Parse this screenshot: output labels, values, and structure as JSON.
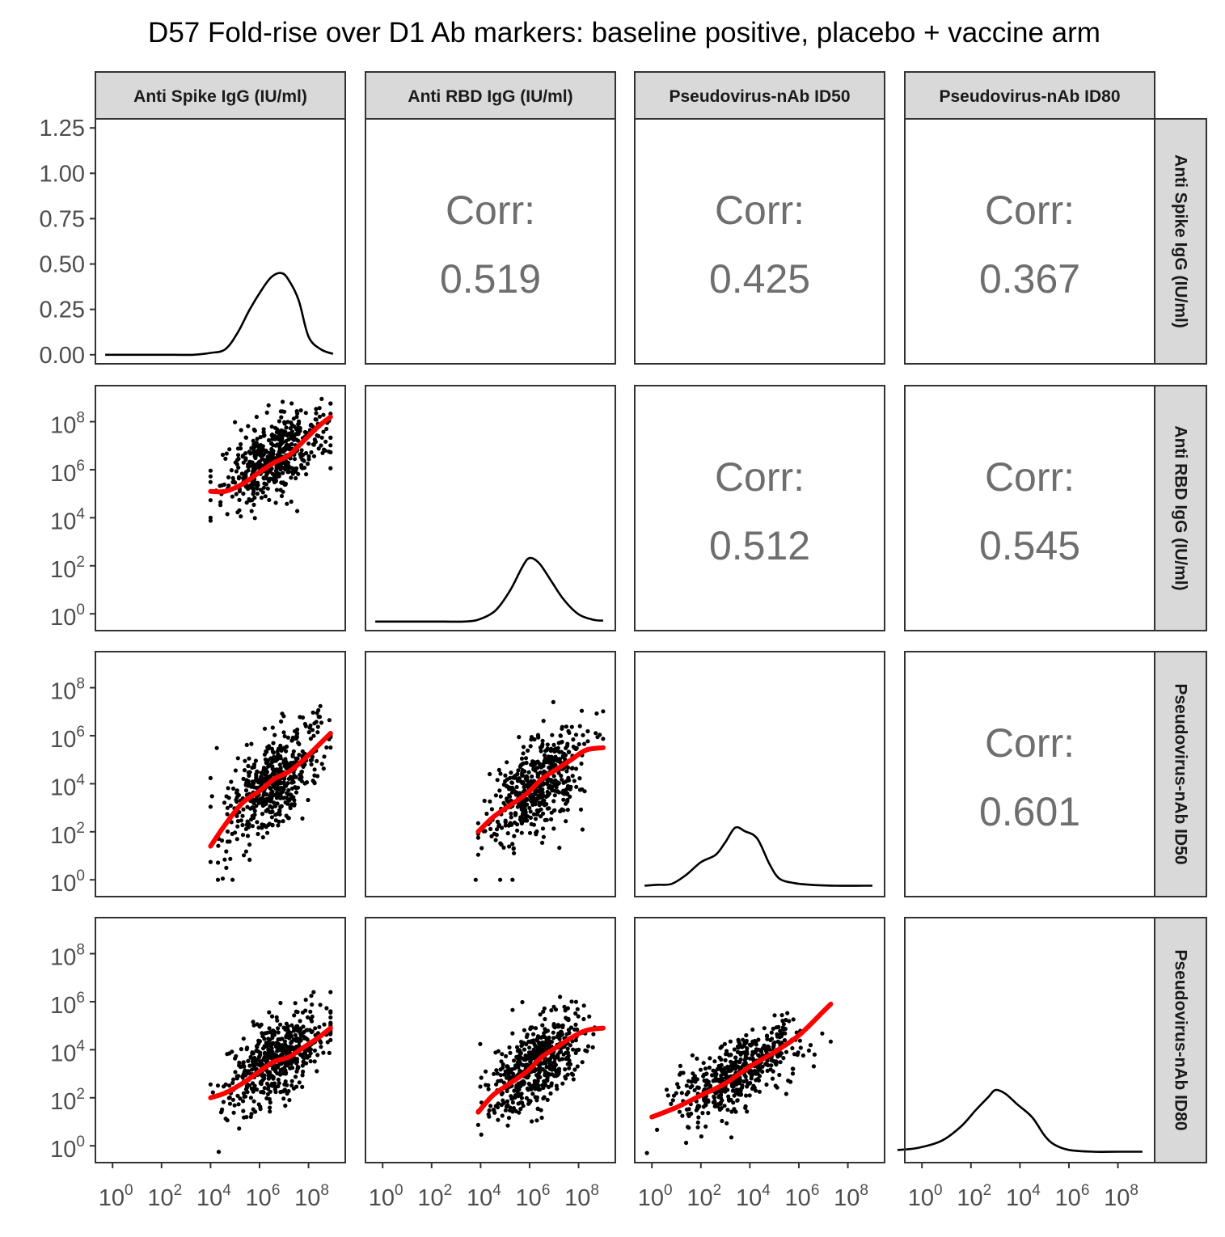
{
  "chart_data": {
    "type": "scatter",
    "title": "D57 Fold-rise over D1 Ab markers: baseline positive, placebo + vaccine arm",
    "variables": [
      "Anti Spike IgG (IU/ml)",
      "Anti RBD IgG (IU/ml)",
      "Pseudovirus-nAb ID50",
      "Pseudovirus-nAb ID80"
    ],
    "axis_scale": "log10",
    "log_range": [
      -0.7,
      9.5
    ],
    "tick_exponents": [
      0,
      2,
      4,
      6,
      8
    ],
    "density_axis": {
      "ticks": [
        "0.00",
        "0.25",
        "0.50",
        "0.75",
        "1.00",
        "1.25"
      ],
      "range": [
        -0.05,
        1.3
      ]
    },
    "correlations": [
      {
        "row": 0,
        "col": 1,
        "label": "Corr:",
        "value": "0.519"
      },
      {
        "row": 0,
        "col": 2,
        "label": "Corr:",
        "value": "0.425"
      },
      {
        "row": 0,
        "col": 3,
        "label": "Corr:",
        "value": "0.367"
      },
      {
        "row": 1,
        "col": 2,
        "label": "Corr:",
        "value": "0.512"
      },
      {
        "row": 1,
        "col": 3,
        "label": "Corr:",
        "value": "0.545"
      },
      {
        "row": 2,
        "col": 3,
        "label": "Corr:",
        "value": "0.601"
      }
    ],
    "densities": [
      {
        "var": "Anti Spike IgG (IU/ml)",
        "x": [
          -0.3,
          0.5,
          1.5,
          2.5,
          3.3,
          4.0,
          4.6,
          5.1,
          5.6,
          6.1,
          6.5,
          6.9,
          7.2,
          7.6,
          8.0,
          8.5,
          9.0
        ],
        "y": [
          0,
          0,
          0,
          0,
          0,
          0.01,
          0.03,
          0.12,
          0.25,
          0.36,
          0.43,
          0.45,
          0.41,
          0.3,
          0.1,
          0.03,
          0.005
        ]
      },
      {
        "var": "Anti RBD IgG (IU/ml)",
        "x": [
          -0.3,
          0.5,
          1.5,
          2.5,
          3.3,
          3.9,
          4.6,
          5.2,
          5.7,
          6.0,
          6.4,
          6.9,
          7.4,
          8.0,
          8.6,
          9.0
        ],
        "y": [
          0,
          0,
          0,
          0,
          0,
          0.01,
          0.06,
          0.17,
          0.3,
          0.35,
          0.32,
          0.22,
          0.12,
          0.04,
          0.01,
          0.005
        ]
      },
      {
        "var": "Pseudovirus-nAb ID50",
        "x": [
          -0.3,
          0.2,
          0.8,
          1.4,
          2.0,
          2.6,
          3.0,
          3.4,
          3.8,
          4.3,
          4.8,
          5.2,
          5.8,
          6.5,
          7.5,
          8.6,
          9.0
        ],
        "y": [
          0.01,
          0.015,
          0.02,
          0.07,
          0.14,
          0.18,
          0.25,
          0.33,
          0.31,
          0.27,
          0.13,
          0.05,
          0.025,
          0.015,
          0.01,
          0.01,
          0.01
        ]
      },
      {
        "var": "Pseudovirus-nAb ID80",
        "x": [
          -1.0,
          -0.2,
          0.8,
          1.6,
          2.2,
          2.7,
          3.0,
          3.4,
          3.9,
          4.5,
          5.0,
          5.4,
          6.0,
          7.0,
          8.0,
          9.0
        ],
        "y": [
          0.02,
          0.03,
          0.07,
          0.15,
          0.24,
          0.31,
          0.35,
          0.33,
          0.27,
          0.2,
          0.1,
          0.05,
          0.02,
          0.01,
          0.01,
          0.01
        ]
      }
    ],
    "scatter_panels": [
      {
        "x_var": "Anti Spike IgG (IU/ml)",
        "y_var": "Anti RBD IgG (IU/ml)",
        "n_points": 520,
        "x_center": 6.6,
        "x_sd": 1.0,
        "x_min": 4.0,
        "x_max": 8.9,
        "slope": 0.55,
        "intercept": 2.85,
        "resid_sd": 0.75,
        "y_min": 3.6,
        "y_max": 9.4,
        "smooth_x": [
          4.0,
          4.6,
          5.3,
          6.0,
          6.6,
          7.2,
          7.8,
          8.4,
          8.9
        ],
        "smooth_y": [
          5.1,
          5.1,
          5.4,
          5.9,
          6.3,
          6.6,
          7.2,
          7.8,
          8.2
        ]
      },
      {
        "x_var": "Anti Spike IgG (IU/ml)",
        "y_var": "Pseudovirus-nAb ID50",
        "n_points": 520,
        "x_center": 6.6,
        "x_sd": 1.0,
        "x_min": 4.0,
        "x_max": 8.9,
        "slope": 0.72,
        "intercept": -0.65,
        "resid_sd": 0.95,
        "y_min": 0.0,
        "y_max": 7.4,
        "smooth_x": [
          4.0,
          4.6,
          5.3,
          6.0,
          6.6,
          7.2,
          7.8,
          8.4,
          8.9
        ],
        "smooth_y": [
          1.4,
          2.3,
          3.2,
          3.7,
          4.2,
          4.5,
          5.0,
          5.6,
          6.1
        ],
        "outliers": [
          [
            4.3,
            0.0
          ],
          [
            4.5,
            0.05
          ],
          [
            4.9,
            0.0
          ]
        ]
      },
      {
        "x_var": "Anti RBD IgG (IU/ml)",
        "y_var": "Pseudovirus-nAb ID50",
        "n_points": 520,
        "x_center": 6.3,
        "x_sd": 0.95,
        "x_min": 3.9,
        "x_max": 9.0,
        "slope": 0.7,
        "intercept": -0.45,
        "resid_sd": 0.95,
        "y_min": 0.0,
        "y_max": 7.4,
        "smooth_x": [
          3.9,
          4.5,
          5.2,
          5.9,
          6.5,
          7.1,
          7.7,
          8.3,
          9.0
        ],
        "smooth_y": [
          2.0,
          2.6,
          3.1,
          3.6,
          4.2,
          4.6,
          5.0,
          5.4,
          5.5
        ],
        "outliers": [
          [
            3.8,
            0.0
          ],
          [
            4.8,
            0.0
          ],
          [
            5.3,
            0.0
          ]
        ]
      },
      {
        "x_var": "Anti Spike IgG (IU/ml)",
        "y_var": "Pseudovirus-nAb ID80",
        "n_points": 520,
        "x_center": 6.6,
        "x_sd": 1.0,
        "x_min": 4.0,
        "x_max": 8.9,
        "slope": 0.58,
        "intercept": -0.2,
        "resid_sd": 0.85,
        "y_min": -0.3,
        "y_max": 6.4,
        "smooth_x": [
          4.0,
          4.6,
          5.3,
          6.0,
          6.6,
          7.2,
          7.8,
          8.4,
          8.9
        ],
        "smooth_y": [
          2.0,
          2.2,
          2.6,
          3.1,
          3.5,
          3.7,
          4.1,
          4.5,
          4.9
        ]
      },
      {
        "x_var": "Anti RBD IgG (IU/ml)",
        "y_var": "Pseudovirus-nAb ID80",
        "n_points": 520,
        "x_center": 6.3,
        "x_sd": 0.95,
        "x_min": 3.9,
        "x_max": 9.0,
        "slope": 0.66,
        "intercept": -0.65,
        "resid_sd": 0.85,
        "y_min": -0.3,
        "y_max": 6.4,
        "smooth_x": [
          3.9,
          4.5,
          5.2,
          5.9,
          6.5,
          7.1,
          7.7,
          8.3,
          9.0
        ],
        "smooth_y": [
          1.4,
          2.1,
          2.6,
          3.1,
          3.7,
          4.1,
          4.5,
          4.8,
          4.9
        ]
      },
      {
        "x_var": "Pseudovirus-nAb ID50",
        "y_var": "Pseudovirus-nAb ID80",
        "n_points": 520,
        "x_center": 3.6,
        "x_sd": 1.3,
        "x_min": -0.2,
        "x_max": 7.3,
        "slope": 0.55,
        "intercept": 1.1,
        "resid_sd": 0.75,
        "y_min": -0.3,
        "y_max": 6.4,
        "smooth_x": [
          0.0,
          1.0,
          2.0,
          3.0,
          4.0,
          5.0,
          6.0,
          7.0,
          7.3
        ],
        "smooth_y": [
          1.2,
          1.6,
          2.1,
          2.6,
          3.3,
          3.9,
          4.6,
          5.6,
          5.9
        ]
      }
    ]
  }
}
